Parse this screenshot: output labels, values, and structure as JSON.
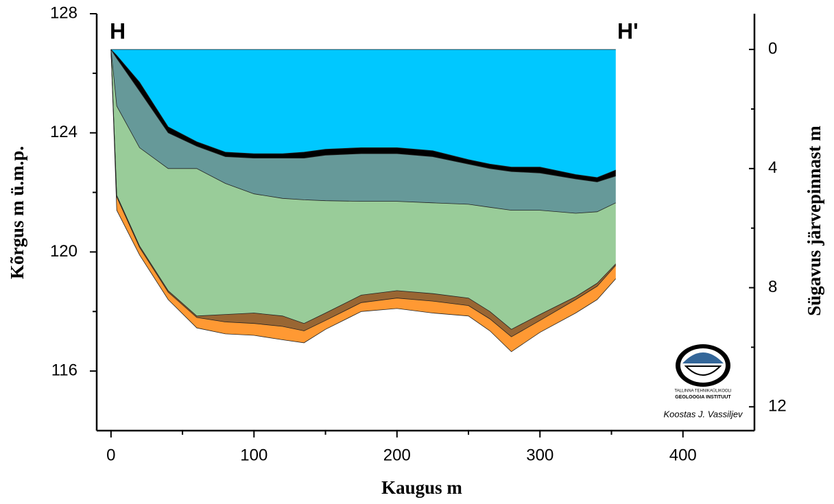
{
  "chart_data": {
    "type": "section",
    "labels": {
      "left": "H",
      "right": "H'"
    },
    "xlabel": "Kaugus m",
    "ylabel": "Kõrgus m ü.m.p.",
    "y2label": "Sügavus järvepinnast m",
    "xlim": [
      -10,
      450
    ],
    "xticks": [
      0,
      100,
      200,
      300,
      400
    ],
    "xminorticks": [
      50,
      150,
      250,
      350
    ],
    "ylim": [
      114,
      128
    ],
    "yticks": [
      116,
      120,
      124,
      128
    ],
    "yminorticks": [
      118,
      122,
      126
    ],
    "y2lim": [
      12.8,
      -1.2
    ],
    "y2ticks": [
      0,
      4,
      8,
      12
    ],
    "y2minorticks": [
      2,
      6,
      10
    ],
    "x": [
      0,
      4,
      20,
      40,
      60,
      80,
      100,
      120,
      135,
      150,
      175,
      200,
      225,
      250,
      265,
      280,
      300,
      325,
      340,
      353
    ],
    "boundaries": [
      {
        "values": [
          126.8,
          126.8,
          126.8,
          126.8,
          126.8,
          126.8,
          126.8,
          126.8,
          126.8,
          126.8,
          126.8,
          126.8,
          126.8,
          126.8,
          126.8,
          126.8,
          126.8,
          126.8,
          126.8,
          126.8
        ]
      },
      {
        "values": [
          126.8,
          126.6,
          125.7,
          124.2,
          123.7,
          123.35,
          123.3,
          123.3,
          123.35,
          123.45,
          123.5,
          123.5,
          123.4,
          123.1,
          122.95,
          122.85,
          122.85,
          122.6,
          122.5,
          122.75
        ]
      },
      {
        "values": [
          126.8,
          126.5,
          125.4,
          124.0,
          123.55,
          123.2,
          123.15,
          123.15,
          123.15,
          123.25,
          123.3,
          123.3,
          123.2,
          122.95,
          122.8,
          122.7,
          122.65,
          122.45,
          122.35,
          122.55
        ]
      },
      {
        "values": [
          126.8,
          124.9,
          123.5,
          122.8,
          122.8,
          122.3,
          121.95,
          121.8,
          121.75,
          121.72,
          121.7,
          121.7,
          121.65,
          121.6,
          121.5,
          121.4,
          121.4,
          121.3,
          121.35,
          121.65
        ]
      },
      {
        "values": [
          126.8,
          121.9,
          120.2,
          118.7,
          117.85,
          117.9,
          117.95,
          117.85,
          117.6,
          117.95,
          118.55,
          118.7,
          118.6,
          118.45,
          118.0,
          117.4,
          117.9,
          118.5,
          118.95,
          119.6
        ]
      },
      {
        "values": [
          126.8,
          121.85,
          120.15,
          118.65,
          117.8,
          117.65,
          117.6,
          117.5,
          117.35,
          117.7,
          118.3,
          118.45,
          118.35,
          118.2,
          117.75,
          117.15,
          117.7,
          118.4,
          118.85,
          119.55
        ]
      },
      {
        "values": [
          126.8,
          121.4,
          119.9,
          118.4,
          117.45,
          117.25,
          117.2,
          117.05,
          116.95,
          117.4,
          118.0,
          118.1,
          117.95,
          117.85,
          117.35,
          116.65,
          117.3,
          117.95,
          118.4,
          119.1
        ]
      }
    ],
    "layer_colors": [
      "#00c8ff",
      "#000000",
      "#669999",
      "#99cc99",
      "#996633",
      "#ff9933"
    ],
    "logo": {
      "line1": "TALLINNA TEHNIKAÜLIKOOLI",
      "line2": "GEOLOOGIA INSTITUUT"
    },
    "author": "Koostas J. Vassiljev"
  }
}
